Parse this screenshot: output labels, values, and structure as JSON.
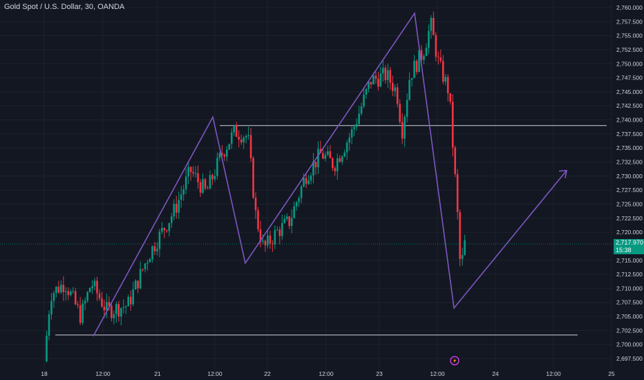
{
  "header": {
    "title": "Gold Spot / U.S. Dollar, 30, OANDA"
  },
  "price_axis": {
    "labels": [
      "2,760.000",
      "2,757.500",
      "2,755.000",
      "2,752.500",
      "2,750.000",
      "2,747.500",
      "2,745.000",
      "2,742.500",
      "2,740.000",
      "2,737.500",
      "2,735.000",
      "2,732.500",
      "2,730.000",
      "2,727.500",
      "2,725.000",
      "2,722.500",
      "2,720.000",
      "2,715.000",
      "2,712.500",
      "2,710.000",
      "2,707.500",
      "2,705.000",
      "2,702.500",
      "2,700.000",
      "2,697.500"
    ]
  },
  "time_axis": {
    "labels": [
      "18",
      "12:00",
      "21",
      "12:00",
      "22",
      "12:00",
      "23",
      "12:00",
      "24",
      "12:00",
      "25"
    ]
  },
  "last_price": {
    "price": "2,717.970",
    "countdown": "15:38",
    "color": "#089981"
  },
  "colors": {
    "background": "#131722",
    "up": "#089981",
    "down": "#f23645",
    "drawing": "#7e57c2",
    "hline": "#d1d4dc"
  },
  "chart_data": {
    "type": "candlestick",
    "symbol": "XAUUSD",
    "interval": "30",
    "ylim": [
      2696,
      2761
    ],
    "x": [
      "18",
      "12:00",
      "21",
      "12:00",
      "22",
      "12:00",
      "23",
      "12:00",
      "24",
      "12:00",
      "25"
    ],
    "horizontal_lines": [
      2739,
      2701.7
    ],
    "zigzag": [
      {
        "t": 0.16,
        "p": 2701.5
      },
      {
        "t": 0.375,
        "p": 2740.5
      },
      {
        "t": 0.435,
        "p": 2714.5
      },
      {
        "t": 0.73,
        "p": 2759
      },
      {
        "t": 0.8,
        "p": 2706.5
      },
      {
        "t": 1.0,
        "p": 2731
      }
    ],
    "waypoints": [
      {
        "t": 0.0,
        "p": 2697
      },
      {
        "t": 0.012,
        "p": 2709
      },
      {
        "t": 0.04,
        "p": 2711
      },
      {
        "t": 0.07,
        "p": 2705
      },
      {
        "t": 0.09,
        "p": 2711
      },
      {
        "t": 0.12,
        "p": 2706
      },
      {
        "t": 0.16,
        "p": 2707
      },
      {
        "t": 0.2,
        "p": 2716
      },
      {
        "t": 0.25,
        "p": 2724
      },
      {
        "t": 0.28,
        "p": 2731
      },
      {
        "t": 0.31,
        "p": 2727
      },
      {
        "t": 0.34,
        "p": 2734
      },
      {
        "t": 0.365,
        "p": 2738
      },
      {
        "t": 0.39,
        "p": 2737
      },
      {
        "t": 0.405,
        "p": 2723
      },
      {
        "t": 0.42,
        "p": 2717
      },
      {
        "t": 0.445,
        "p": 2720
      },
      {
        "t": 0.47,
        "p": 2722
      },
      {
        "t": 0.5,
        "p": 2730
      },
      {
        "t": 0.53,
        "p": 2734
      },
      {
        "t": 0.555,
        "p": 2732
      },
      {
        "t": 0.59,
        "p": 2738
      },
      {
        "t": 0.625,
        "p": 2747
      },
      {
        "t": 0.655,
        "p": 2748
      },
      {
        "t": 0.675,
        "p": 2745
      },
      {
        "t": 0.685,
        "p": 2738
      },
      {
        "t": 0.7,
        "p": 2748
      },
      {
        "t": 0.725,
        "p": 2752
      },
      {
        "t": 0.74,
        "p": 2757
      },
      {
        "t": 0.755,
        "p": 2750
      },
      {
        "t": 0.775,
        "p": 2745
      },
      {
        "t": 0.79,
        "p": 2725
      },
      {
        "t": 0.797,
        "p": 2713
      },
      {
        "t": 0.805,
        "p": 2718
      }
    ],
    "candle_count": 175
  },
  "icons": {
    "lightning": "lightning-icon"
  }
}
